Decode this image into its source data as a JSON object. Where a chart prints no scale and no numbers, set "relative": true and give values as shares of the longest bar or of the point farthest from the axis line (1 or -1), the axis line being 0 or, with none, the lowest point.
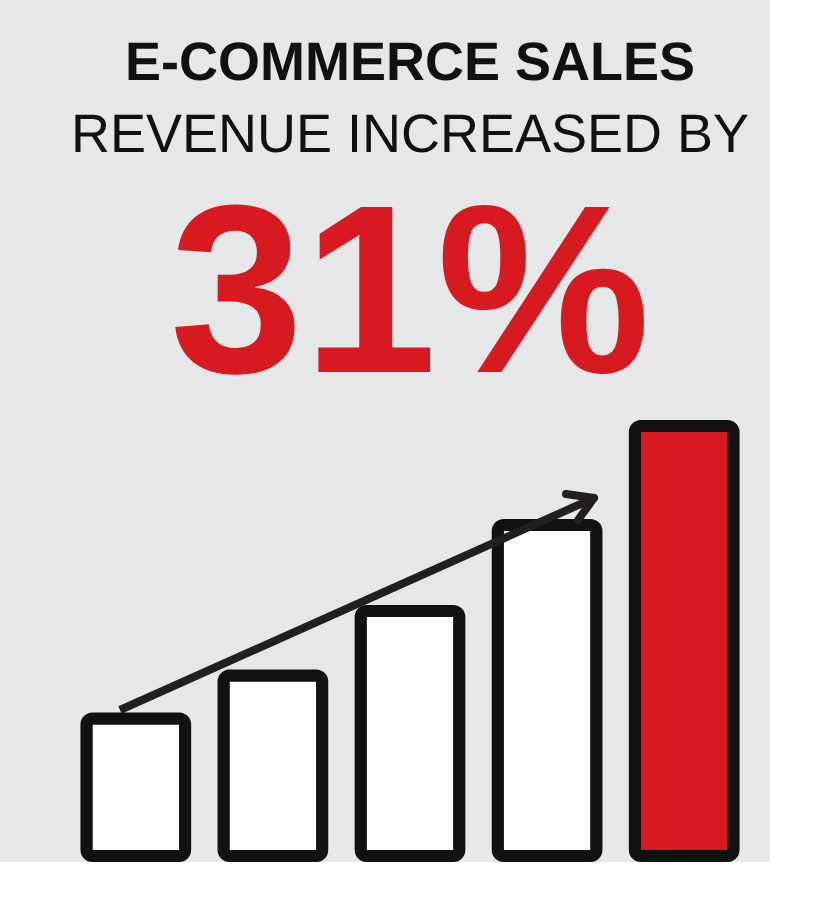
{
  "chart_data": {
    "type": "bar",
    "title": "E-COMMERCE SALES",
    "subtitle": "REVENUE INCREASED BY",
    "annotations": [
      "31%"
    ],
    "categories": [
      null,
      null,
      null,
      null,
      null
    ],
    "values": [
      0.32,
      0.42,
      0.57,
      0.77,
      1
    ],
    "colors": [
      "#ffffff",
      "#ffffff",
      "#ffffff",
      "#ffffff",
      "#d71920"
    ],
    "relative": true
  }
}
